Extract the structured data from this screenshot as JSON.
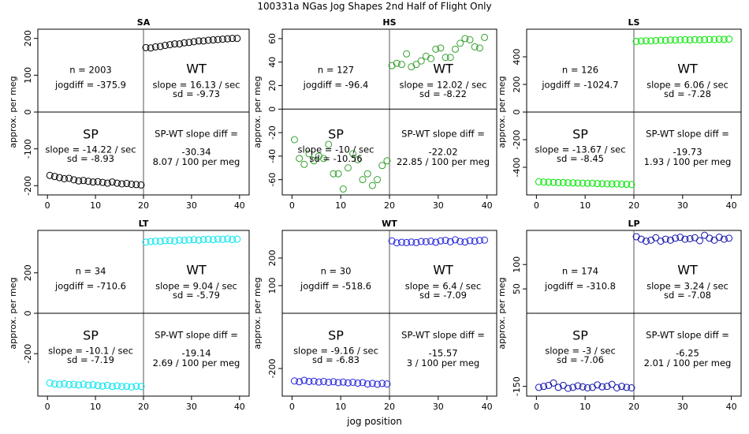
{
  "figure": {
    "title": "100331a   NGas Jog Shapes 2nd Half of Flight Only",
    "xlabel": "jog position"
  },
  "chart_data": [
    {
      "type": "scatter",
      "title": "SA",
      "ylabel": "approx. per meg",
      "xlabel": "jog position",
      "color": "#000000",
      "xlim": [
        -2,
        42
      ],
      "ylim": [
        -225,
        225
      ],
      "xticks": [
        0,
        10,
        20,
        30,
        40
      ],
      "yticks": [
        -200,
        -100,
        0,
        100,
        200
      ],
      "n_label": "n = 2003",
      "jogdiff_label": "jogdiff = -375.9",
      "wt_label": "WT",
      "wt_slope": "slope = 16.13 / sec",
      "wt_sd": "sd = -9.73",
      "sp_label": "SP",
      "sp_slope": "slope = -14.22 / sec",
      "sp_sd": "sd = -8.93",
      "diff_label": "SP-WT slope diff =",
      "diff_value": "-30.34",
      "diff_per": "8.07 / 100 per meg",
      "x": [
        0.5,
        1.5,
        2.5,
        3.5,
        4.5,
        5.5,
        6.5,
        7.5,
        8.5,
        9.5,
        10.5,
        11.5,
        12.5,
        13.5,
        14.5,
        15.5,
        16.5,
        17.5,
        18.5,
        19.5,
        20.5,
        21.5,
        22.5,
        23.5,
        24.5,
        25.5,
        26.5,
        27.5,
        28.5,
        29.5,
        30.5,
        31.5,
        32.5,
        33.5,
        34.5,
        35.5,
        36.5,
        37.5,
        38.5,
        39.5
      ],
      "y": [
        -172,
        -175,
        -178,
        -181,
        -180,
        -184,
        -187,
        -186,
        -188,
        -190,
        -189,
        -191,
        -193,
        -190,
        -193,
        -195,
        -194,
        -196,
        -197,
        -198,
        175,
        174,
        177,
        178,
        181,
        183,
        185,
        185,
        188,
        189,
        191,
        193,
        193,
        195,
        196,
        197,
        198,
        199,
        200,
        200
      ]
    },
    {
      "type": "scatter",
      "title": "HS",
      "ylabel": "approx. per meg",
      "xlabel": "jog position",
      "color": "#33a02c",
      "xlim": [
        -2,
        42
      ],
      "ylim": [
        -73,
        68
      ],
      "xticks": [
        0,
        10,
        20,
        30,
        40
      ],
      "yticks": [
        -60,
        -40,
        -20,
        0,
        20,
        40,
        60
      ],
      "n_label": "n = 127",
      "jogdiff_label": "jogdiff = -96.4",
      "wt_label": "WT",
      "wt_slope": "slope = 12.02 / sec",
      "wt_sd": "sd = -8.22",
      "sp_label": "SP",
      "sp_slope": "slope = -10 / sec",
      "sp_sd": "sd = -10.56",
      "diff_label": "SP-WT slope diff =",
      "diff_value": "-22.02",
      "diff_per": "22.85 / 100 per meg",
      "x": [
        0.5,
        1.5,
        2.5,
        3.5,
        4.5,
        5.5,
        6.5,
        7.5,
        8.5,
        9.5,
        10.5,
        11.5,
        12.5,
        13.5,
        14.5,
        15.5,
        16.5,
        17.5,
        18.5,
        19.5,
        20.5,
        21.5,
        22.5,
        23.5,
        24.5,
        25.5,
        26.5,
        27.5,
        28.5,
        29.5,
        30.5,
        31.5,
        32.5,
        33.5,
        34.5,
        35.5,
        36.5,
        37.5,
        38.5,
        39.5
      ],
      "y": [
        -26,
        -42,
        -47,
        -38,
        -44,
        -40,
        -42,
        -30,
        -55,
        -55,
        -68,
        -50,
        -38,
        -43,
        -60,
        -55,
        -65,
        -60,
        -48,
        -44,
        37,
        39,
        38,
        47,
        36,
        38,
        41,
        45,
        43,
        51,
        52,
        44,
        44,
        51,
        56,
        60,
        59,
        53,
        52,
        61
      ]
    },
    {
      "type": "scatter",
      "title": "LS",
      "ylabel": "approx. per meg",
      "xlabel": "jog position",
      "color": "#00e600",
      "xlim": [
        -2,
        42
      ],
      "ylim": [
        -600,
        600
      ],
      "xticks": [
        0,
        10,
        20,
        30,
        40
      ],
      "yticks": [
        -400,
        -200,
        0,
        200,
        400
      ],
      "n_label": "n = 126",
      "jogdiff_label": "jogdiff = -1024.7",
      "wt_label": "WT",
      "wt_slope": "slope = 6.06 / sec",
      "wt_sd": "sd = -7.28",
      "sp_label": "SP",
      "sp_slope": "slope = -13.67 / sec",
      "sp_sd": "sd = -8.45",
      "diff_label": "SP-WT slope diff =",
      "diff_value": "-19.73",
      "diff_per": "1.93 / 100 per meg",
      "x": [
        0.5,
        1.5,
        2.5,
        3.5,
        4.5,
        5.5,
        6.5,
        7.5,
        8.5,
        9.5,
        10.5,
        11.5,
        12.5,
        13.5,
        14.5,
        15.5,
        16.5,
        17.5,
        18.5,
        19.5,
        20.5,
        21.5,
        22.5,
        23.5,
        24.5,
        25.5,
        26.5,
        27.5,
        28.5,
        29.5,
        30.5,
        31.5,
        32.5,
        33.5,
        34.5,
        35.5,
        36.5,
        37.5,
        38.5,
        39.5
      ],
      "y": [
        -505,
        -507,
        -508,
        -509,
        -511,
        -510,
        -512,
        -513,
        -514,
        -515,
        -516,
        -515,
        -518,
        -519,
        -520,
        -521,
        -520,
        -522,
        -523,
        -525,
        512,
        514,
        516,
        515,
        518,
        520,
        519,
        522,
        521,
        523,
        524,
        522,
        525,
        523,
        524,
        526,
        525,
        527,
        526,
        528
      ]
    },
    {
      "type": "scatter",
      "title": "LT",
      "ylabel": "approx. per meg",
      "xlabel": "jog position",
      "color": "#00e5ee",
      "xlim": [
        -2,
        42
      ],
      "ylim": [
        -410,
        410
      ],
      "xticks": [
        0,
        10,
        20,
        30,
        40
      ],
      "yticks": [
        -200,
        0,
        200
      ],
      "n_label": "n = 34",
      "jogdiff_label": "jogdiff = -710.6",
      "wt_label": "WT",
      "wt_slope": "slope = 9.04 / sec",
      "wt_sd": "sd = -5.79",
      "sp_label": "SP",
      "sp_slope": "slope = -10.1 / sec",
      "sp_sd": "sd = -7.19",
      "diff_label": "SP-WT slope diff =",
      "diff_value": "-19.14",
      "diff_per": "2.69 / 100 per meg",
      "x": [
        0.5,
        1.5,
        2.5,
        3.5,
        4.5,
        5.5,
        6.5,
        7.5,
        8.5,
        9.5,
        10.5,
        11.5,
        12.5,
        13.5,
        14.5,
        15.5,
        16.5,
        17.5,
        18.5,
        19.5,
        20.5,
        21.5,
        22.5,
        23.5,
        24.5,
        25.5,
        26.5,
        27.5,
        28.5,
        29.5,
        30.5,
        31.5,
        32.5,
        33.5,
        34.5,
        35.5,
        36.5,
        37.5,
        38.5,
        39.5
      ],
      "y": [
        -345,
        -350,
        -352,
        -349,
        -353,
        -352,
        -355,
        -351,
        -356,
        -354,
        -358,
        -360,
        -357,
        -362,
        -359,
        -363,
        -362,
        -365,
        -361,
        -362,
        352,
        355,
        357,
        356,
        359,
        360,
        358,
        362,
        361,
        363,
        364,
        362,
        365,
        366,
        364,
        367,
        366,
        368,
        365,
        367
      ]
    },
    {
      "type": "scatter",
      "title": "WT",
      "ylabel": "approx. per meg",
      "xlabel": "jog position",
      "color": "#2222dd",
      "xlim": [
        -2,
        42
      ],
      "ylim": [
        -300,
        300
      ],
      "xticks": [
        0,
        10,
        20,
        30,
        40
      ],
      "yticks": [
        -200,
        100,
        200
      ],
      "n_label": "n = 30",
      "jogdiff_label": "jogdiff = -518.6",
      "wt_label": "WT",
      "wt_slope": "slope = 6.4 / sec",
      "wt_sd": "sd = -7.09",
      "sp_label": "SP",
      "sp_slope": "slope = -9.16 / sec",
      "sp_sd": "sd = -6.83",
      "diff_label": "SP-WT slope diff =",
      "diff_value": "-15.57",
      "diff_per": "3 / 100 per meg",
      "x": [
        0.5,
        1.5,
        2.5,
        3.5,
        4.5,
        5.5,
        6.5,
        7.5,
        8.5,
        9.5,
        10.5,
        11.5,
        12.5,
        13.5,
        14.5,
        15.5,
        16.5,
        17.5,
        18.5,
        19.5,
        20.5,
        21.5,
        22.5,
        23.5,
        24.5,
        25.5,
        26.5,
        27.5,
        28.5,
        29.5,
        30.5,
        31.5,
        32.5,
        33.5,
        34.5,
        35.5,
        36.5,
        37.5,
        38.5,
        39.5
      ],
      "y": [
        -245,
        -248,
        -243,
        -247,
        -246,
        -249,
        -247,
        -250,
        -248,
        -251,
        -249,
        -252,
        -250,
        -253,
        -251,
        -256,
        -254,
        -257,
        -254,
        -256,
        262,
        255,
        257,
        256,
        258,
        256,
        260,
        259,
        261,
        257,
        262,
        264,
        259,
        266,
        260,
        258,
        263,
        261,
        264,
        265
      ]
    },
    {
      "type": "scatter",
      "title": "LP",
      "ylabel": "approx. per meg",
      "xlabel": "jog position",
      "color": "#1111aa",
      "xlim": [
        -2,
        42
      ],
      "ylim": [
        -170,
        170
      ],
      "xticks": [
        0,
        10,
        20,
        30,
        40
      ],
      "yticks": [
        -150,
        50,
        100
      ],
      "n_label": "n = 174",
      "jogdiff_label": "jogdiff = -310.8",
      "wt_label": "WT",
      "wt_slope": "slope = 3.24 / sec",
      "wt_sd": "sd = -7.08",
      "sp_label": "SP",
      "sp_slope": "slope = -3 / sec",
      "sp_sd": "sd = -7.06",
      "diff_label": "SP-WT slope diff =",
      "diff_value": "-6.25",
      "diff_per": "2.01 / 100 per meg",
      "x": [
        0.5,
        1.5,
        2.5,
        3.5,
        4.5,
        5.5,
        6.5,
        7.5,
        8.5,
        9.5,
        10.5,
        11.5,
        12.5,
        13.5,
        14.5,
        15.5,
        16.5,
        17.5,
        18.5,
        19.5,
        20.5,
        21.5,
        22.5,
        23.5,
        24.5,
        25.5,
        26.5,
        27.5,
        28.5,
        29.5,
        30.5,
        31.5,
        32.5,
        33.5,
        34.5,
        35.5,
        36.5,
        37.5,
        38.5,
        39.5
      ],
      "y": [
        -152,
        -150,
        -148,
        -143,
        -152,
        -148,
        -154,
        -152,
        -149,
        -151,
        -153,
        -152,
        -147,
        -151,
        -150,
        -146,
        -153,
        -150,
        -152,
        -153,
        157,
        152,
        148,
        150,
        155,
        148,
        152,
        150,
        154,
        156,
        152,
        153,
        155,
        149,
        160,
        154,
        150,
        156,
        152,
        154
      ]
    }
  ]
}
